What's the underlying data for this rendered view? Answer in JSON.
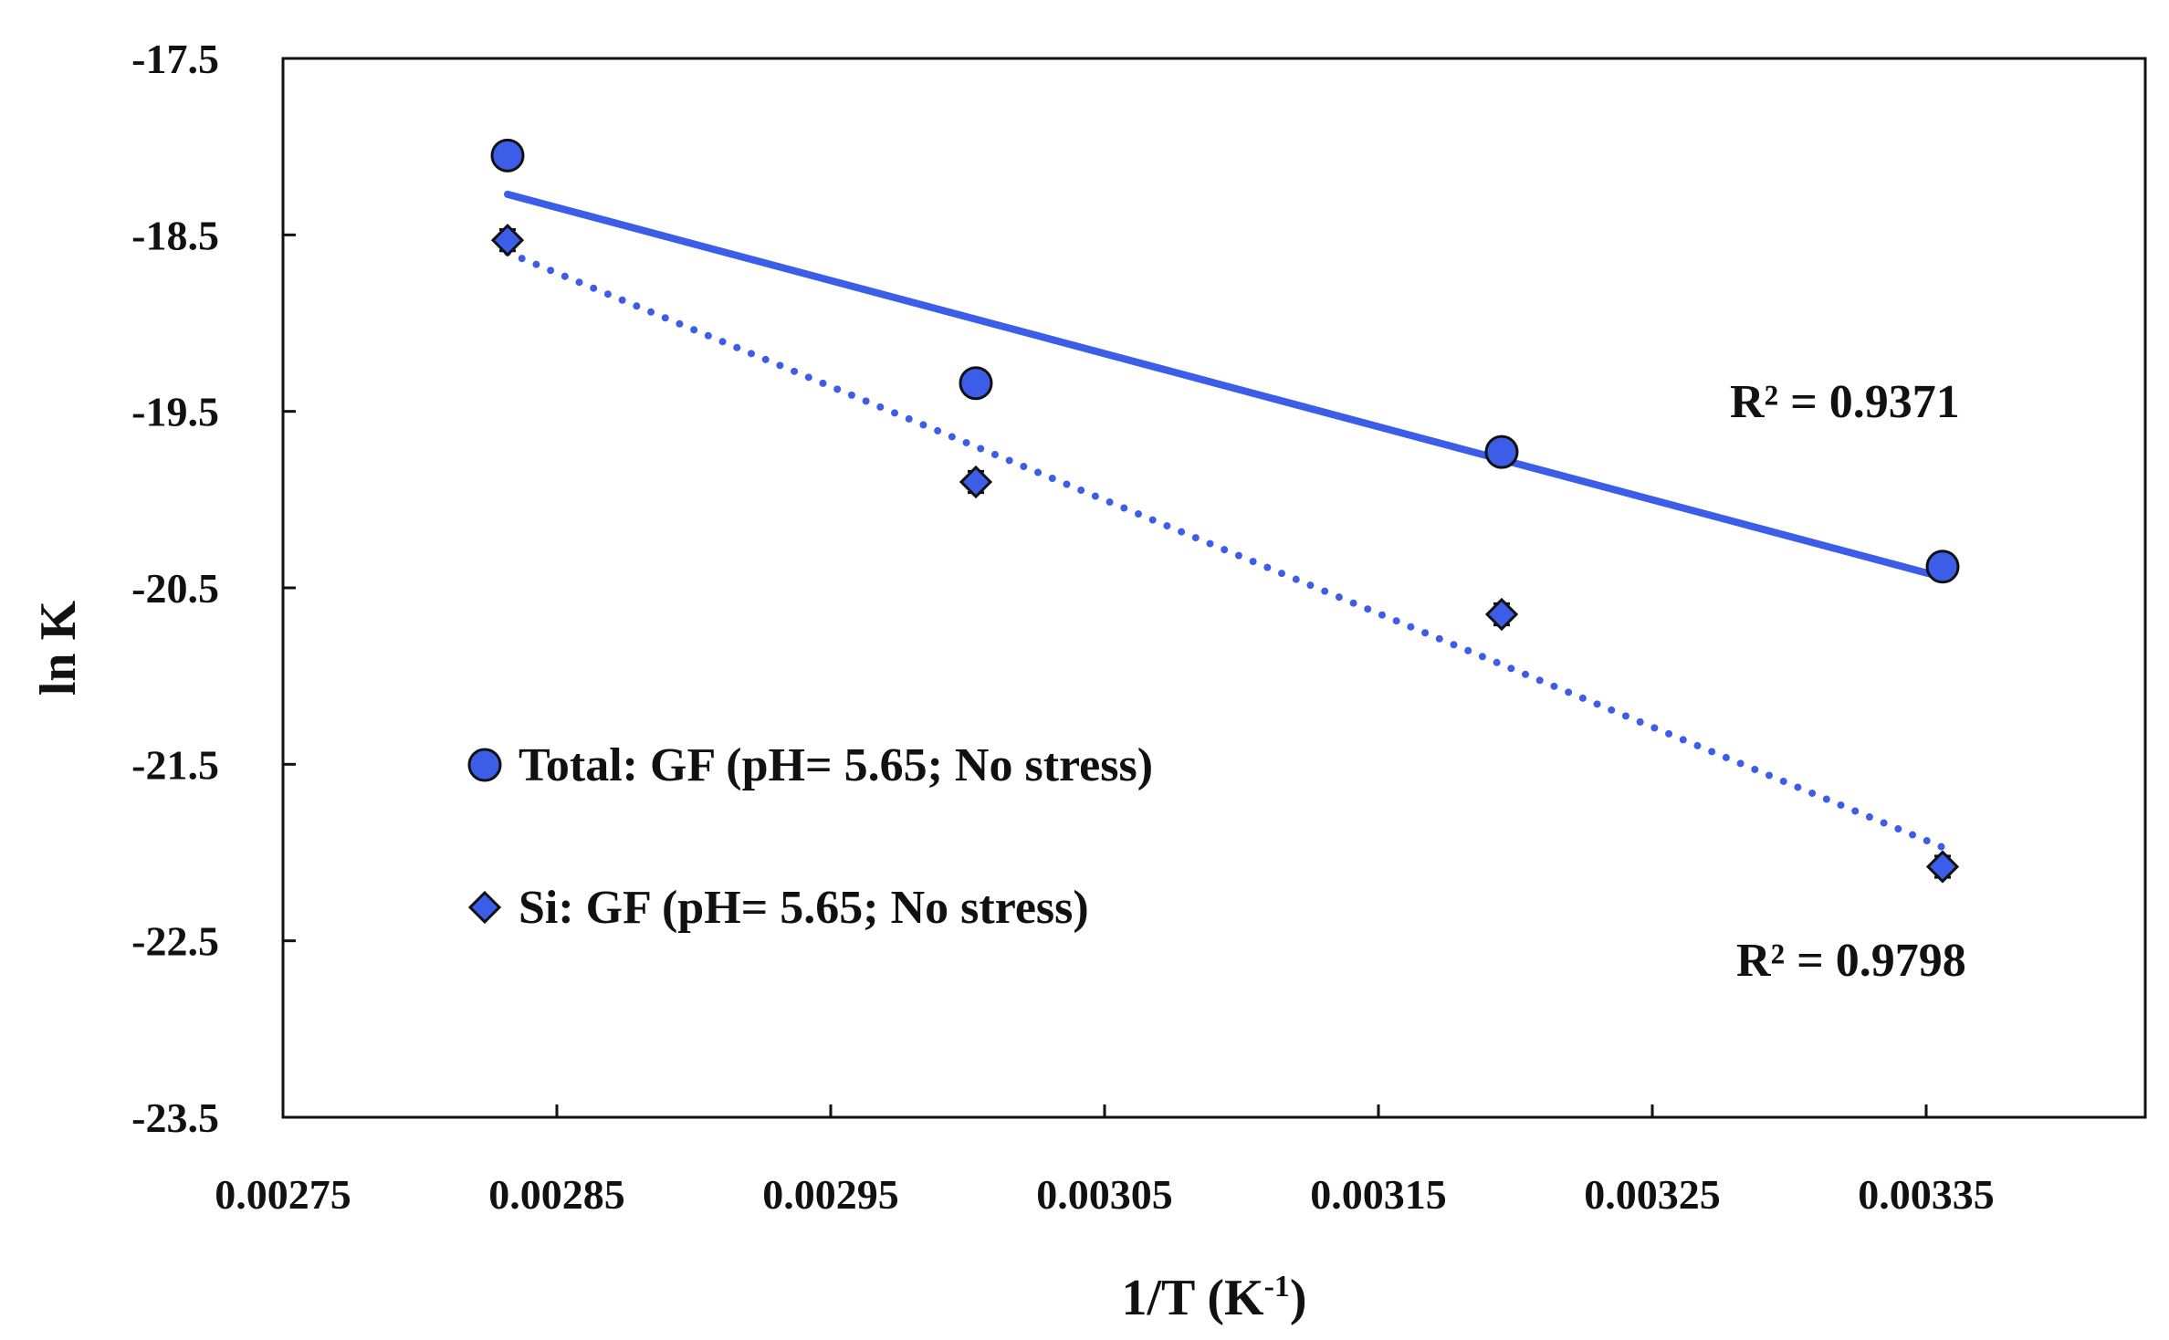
{
  "chart_data": {
    "type": "scatter",
    "xlabel": "1/T (K",
    "xlabel_sup": "-1",
    "xlabel_close": ")",
    "ylabel": "ln K",
    "xlim": [
      0.00275,
      0.00343
    ],
    "ylim": [
      -23.5,
      -17.5
    ],
    "xticks": [
      0.00275,
      0.00285,
      0.00295,
      0.00305,
      0.00315,
      0.00325,
      0.00335
    ],
    "xtick_labels": [
      "0.00275",
      "0.00285",
      "0.00295",
      "0.00305",
      "0.00315",
      "0.00325",
      "0.00335"
    ],
    "yticks": [
      -17.5,
      -18.5,
      -19.5,
      -20.5,
      -21.5,
      -22.5,
      -23.5
    ],
    "ytick_labels": [
      "-17.5",
      "-18.5",
      "-19.5",
      "-20.5",
      "-21.5",
      "-22.5",
      "-23.5"
    ],
    "grid": false,
    "legend_position": "left-middle",
    "series": [
      {
        "name": "Total: GF (pH= 5.65; No stress)",
        "marker": "circle",
        "color": "#3b5de7",
        "x": [
          0.002832,
          0.003003,
          0.003195,
          0.003356
        ],
        "y": [
          -18.05,
          -19.34,
          -19.73,
          -20.38
        ],
        "trendline": {
          "style": "solid",
          "x": [
            0.002832,
            0.003356
          ],
          "y": [
            -18.27,
            -20.44
          ]
        },
        "r2_label": "R² = 0.9371"
      },
      {
        "name": "Si: GF (pH= 5.65; No stress)",
        "marker": "diamond",
        "color": "#3b5de7",
        "x": [
          0.002832,
          0.003003,
          0.003195,
          0.003356
        ],
        "y": [
          -18.53,
          -19.9,
          -20.65,
          -22.08
        ],
        "error": [
          0.06,
          0.06,
          0.06,
          0.06
        ],
        "trendline": {
          "style": "dotted",
          "x": [
            0.002832,
            0.003356
          ],
          "y": [
            -18.6,
            -21.97
          ]
        },
        "r2_label": "R² = 0.9798"
      }
    ]
  }
}
